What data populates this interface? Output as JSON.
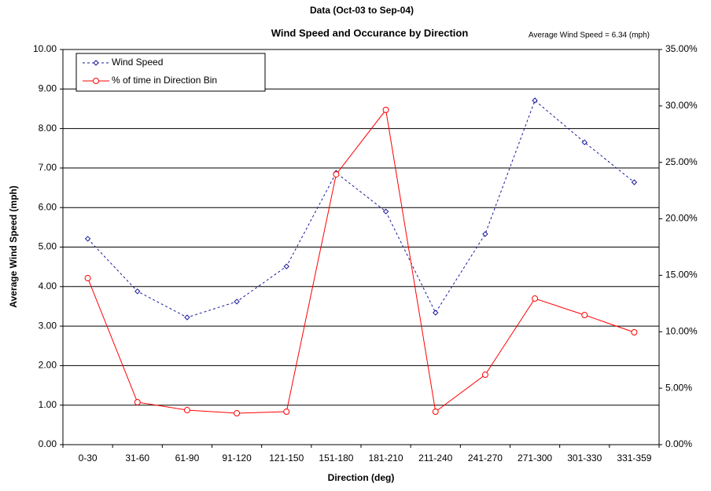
{
  "chart_data": {
    "type": "line",
    "title": "Wind Speed and Occurance by Direction",
    "subtitle": "Data (Oct-03 to Sep-04)",
    "annotation": "Average Wind Speed = 6.34 (mph)",
    "x_label": "Direction (deg)",
    "y_label": "Average Wind Speed (mph)",
    "categories": [
      "0-30",
      "31-60",
      "61-90",
      "91-120",
      "121-150",
      "151-180",
      "181-210",
      "211-240",
      "241-270",
      "271-300",
      "301-330",
      "331-359"
    ],
    "series": [
      {
        "name": "Wind Speed",
        "color": "#1a1a9a",
        "dashed": true,
        "marker": "diamond",
        "values": [
          5.21,
          3.88,
          3.22,
          3.62,
          4.51,
          6.88,
          5.9,
          3.34,
          5.33,
          8.71,
          7.65,
          6.64
        ]
      },
      {
        "name": "% of time in Direction Bin",
        "color": "#ff0000",
        "dashed": false,
        "marker": "circle",
        "axis": "y2",
        "values": [
          14.75,
          3.76,
          3.06,
          2.78,
          2.92,
          23.94,
          29.65,
          2.92,
          6.19,
          12.94,
          11.48,
          9.95
        ]
      }
    ],
    "ylim": [
      0,
      10
    ],
    "yticks": [
      {
        "value": 0,
        "label": "0.00"
      },
      {
        "value": 1,
        "label": "1.00"
      },
      {
        "value": 2,
        "label": "2.00"
      },
      {
        "value": 3,
        "label": "3.00"
      },
      {
        "value": 4,
        "label": "4.00"
      },
      {
        "value": 5,
        "label": "5.00"
      },
      {
        "value": 6,
        "label": "6.00"
      },
      {
        "value": 7,
        "label": "7.00"
      },
      {
        "value": 8,
        "label": "8.00"
      },
      {
        "value": 9,
        "label": "9.00"
      },
      {
        "value": 10,
        "label": "10.00"
      }
    ],
    "y2lim": [
      0,
      35
    ],
    "y2ticks": [
      {
        "value": 0,
        "label": "0.00%"
      },
      {
        "value": 5,
        "label": "5.00%"
      },
      {
        "value": 10,
        "label": "10.00%"
      },
      {
        "value": 15,
        "label": "15.00%"
      },
      {
        "value": 20,
        "label": "20.00%"
      },
      {
        "value": 25,
        "label": "25.00%"
      },
      {
        "value": 30,
        "label": "30.00%"
      },
      {
        "value": 35,
        "label": "35.00%"
      }
    ],
    "grid": true,
    "legend": "upper left"
  }
}
